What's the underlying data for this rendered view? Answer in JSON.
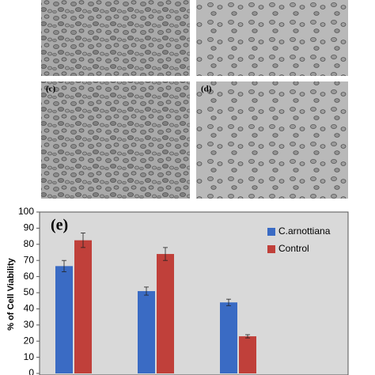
{
  "panel_labels": [
    "(c)",
    "(d)"
  ],
  "chart_data": {
    "type": "bar",
    "panel_label": "(e)",
    "y_label": "% of Cell Viability",
    "categories": [
      null,
      null,
      null
    ],
    "series": [
      {
        "name": "C.arnottiana",
        "color": "#3a6bc4",
        "values": [
          66.5,
          51,
          44
        ],
        "errors": [
          3.5,
          2.5,
          2
        ]
      },
      {
        "name": "Control",
        "color": "#c0403a",
        "values": [
          82.5,
          74,
          23
        ],
        "errors": [
          4.5,
          4,
          1
        ]
      }
    ],
    "ylim": [
      0,
      100
    ],
    "yticks": [
      0,
      10,
      20,
      30,
      40,
      50,
      60,
      70,
      80,
      90,
      100
    ],
    "grid": false,
    "legend": "upper right"
  }
}
